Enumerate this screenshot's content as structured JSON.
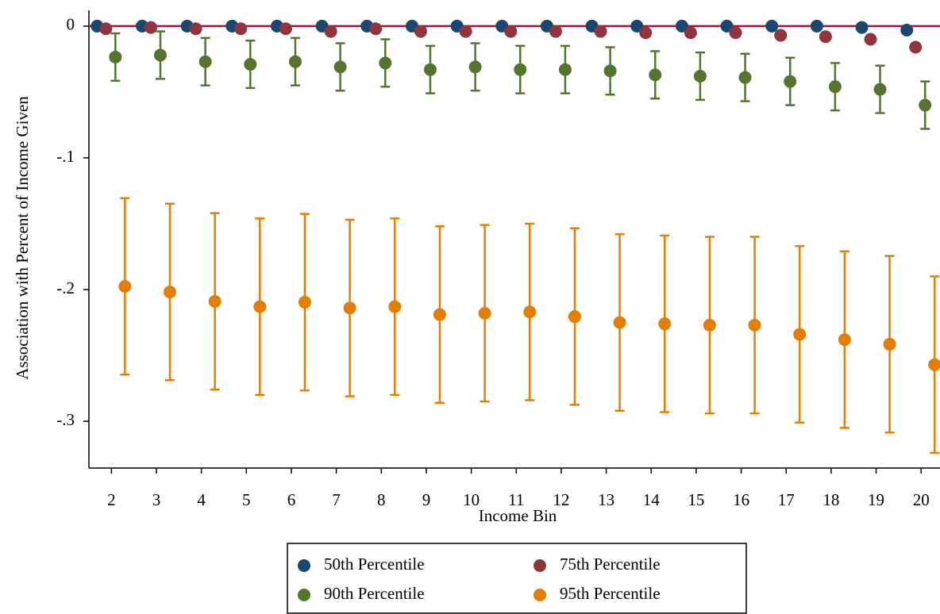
{
  "chart_data": {
    "type": "errorbar-scatter",
    "xlabel": "Income Bin",
    "ylabel": "Association with Percent of Income Given",
    "x": [
      2,
      3,
      4,
      5,
      6,
      7,
      8,
      9,
      10,
      11,
      12,
      13,
      14,
      15,
      16,
      17,
      18,
      19,
      20
    ],
    "xlim": [
      1.5,
      20.42
    ],
    "xticks": [
      2,
      3,
      4,
      5,
      6,
      7,
      8,
      9,
      10,
      11,
      12,
      13,
      14,
      15,
      16,
      17,
      18,
      19,
      20
    ],
    "ylim": [
      -0.3355,
      0.012
    ],
    "yticks": [
      {
        "value": 0,
        "label": "0"
      },
      {
        "value": -0.1,
        "label": "-.1"
      },
      {
        "value": -0.2,
        "label": "-.2"
      },
      {
        "value": -0.3,
        "label": "-.3"
      }
    ],
    "reference_line": {
      "value": 0,
      "color": "#c10534"
    },
    "series": [
      {
        "name": "50th Percentile",
        "color": "#1a476f",
        "values": [
          0,
          0,
          0,
          0,
          0,
          0,
          0,
          0,
          0,
          0,
          0,
          0,
          0,
          0,
          0,
          0,
          0,
          -0.001,
          -0.003
        ]
      },
      {
        "name": "75th Percentile",
        "color": "#90353b",
        "values": [
          -0.002,
          -0.001,
          -0.002,
          -0.002,
          -0.002,
          -0.004,
          -0.002,
          -0.004,
          -0.004,
          -0.004,
          -0.004,
          -0.004,
          -0.005,
          -0.005,
          -0.005,
          -0.007,
          -0.008,
          -0.01,
          -0.016
        ]
      },
      {
        "name": "90th Percentile",
        "color": "#55752f",
        "values": [
          -0.0235,
          -0.022,
          -0.027,
          -0.029,
          -0.027,
          -0.031,
          -0.028,
          -0.033,
          -0.031,
          -0.033,
          -0.033,
          -0.034,
          -0.037,
          -0.038,
          -0.039,
          -0.042,
          -0.046,
          -0.048,
          -0.06
        ],
        "errors": [
          0.018,
          0.018,
          0.018,
          0.018,
          0.018,
          0.018,
          0.018,
          0.018,
          0.018,
          0.018,
          0.018,
          0.018,
          0.018,
          0.018,
          0.018,
          0.018,
          0.018,
          0.018,
          0.018
        ]
      },
      {
        "name": "95th Percentile",
        "color": "#e37e00",
        "values": [
          -0.1976,
          -0.2018,
          -0.209,
          -0.213,
          -0.2096,
          -0.214,
          -0.213,
          -0.219,
          -0.218,
          -0.217,
          -0.2205,
          -0.225,
          -0.226,
          -0.227,
          -0.227,
          -0.234,
          -0.238,
          -0.2415,
          -0.257
        ],
        "errors": [
          0.067,
          0.067,
          0.067,
          0.067,
          0.067,
          0.067,
          0.067,
          0.067,
          0.067,
          0.067,
          0.067,
          0.067,
          0.067,
          0.067,
          0.067,
          0.067,
          0.067,
          0.067,
          0.067
        ]
      }
    ]
  }
}
